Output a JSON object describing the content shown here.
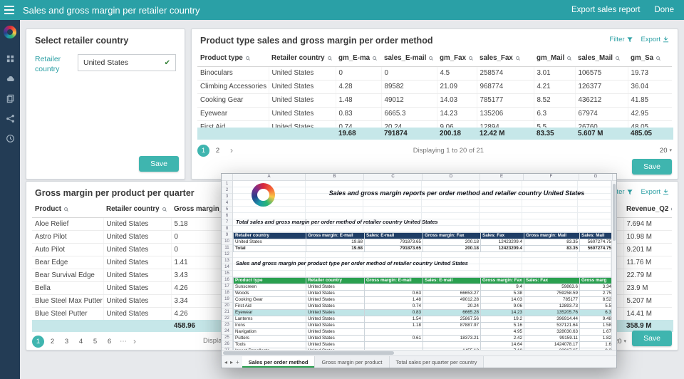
{
  "topbar": {
    "title": "Sales and gross margin per retailer country",
    "export_button": "Export sales report",
    "done_button": "Done"
  },
  "select_panel": {
    "title": "Select retailer country",
    "field_label": "Retailer country",
    "field_value": "United States",
    "check_icon": "✔",
    "save_button": "Save"
  },
  "product_type_panel": {
    "title": "Product type sales and gross margin per order method",
    "filter_link": "Filter",
    "export_link": "Export",
    "columns": [
      "Product type",
      "Retailer country",
      "gm_E-ma",
      "sales_E-mail",
      "gm_Fax",
      "sales_Fax",
      "gm_Mail",
      "sales_Mail",
      "gm_Sa"
    ],
    "rows": [
      [
        "Binoculars",
        "United States",
        "0",
        "0",
        "4.5",
        "258574",
        "3.01",
        "106575",
        "19.73"
      ],
      [
        "Climbing Accessories",
        "United States",
        "4.28",
        "89582",
        "21.09",
        "968774",
        "4.21",
        "126377",
        "36.04"
      ],
      [
        "Cooking Gear",
        "United States",
        "1.48",
        "49012",
        "14.03",
        "785177",
        "8.52",
        "436212",
        "41.85"
      ],
      [
        "Eyewear",
        "United States",
        "0.83",
        "6665.3",
        "14.23",
        "135206",
        "6.3",
        "67974",
        "42.95"
      ],
      [
        "First Aid",
        "United States",
        "0.74",
        "20.24",
        "9.06",
        "12894",
        "5.5",
        "26760",
        "48.05"
      ]
    ],
    "summary": [
      "",
      "",
      "19.68",
      "791874",
      "200.18",
      "12.42 M",
      "83.35",
      "5.607 M",
      "485.05"
    ],
    "pagination": {
      "pages": [
        "1",
        "2"
      ],
      "next": "›",
      "status": "Displaying 1 to 20 of 21",
      "page_size": "20",
      "caret": "▾"
    },
    "save_button": "Save"
  },
  "gross_margin_panel": {
    "title": "Gross margin per product per quarter",
    "filter_link": "Filter",
    "export_link": "Export",
    "columns": [
      "Product",
      "Retailer country",
      "Gross margin_Q1 201",
      "Revenue_Q2"
    ],
    "rows": [
      [
        "Aloe Relief",
        "United States",
        "5.18",
        "7.694 M"
      ],
      [
        "Astro Pilot",
        "United States",
        "0",
        "10.98 M"
      ],
      [
        "Auto Pilot",
        "United States",
        "0",
        "9.201 M"
      ],
      [
        "Bear Edge",
        "United States",
        "1.41",
        "11.76 M"
      ],
      [
        "Bear Survival Edge",
        "United States",
        "3.43",
        "22.79 M"
      ],
      [
        "Bella",
        "United States",
        "4.26",
        "23.9 M"
      ],
      [
        "Blue Steel Max Putter",
        "United States",
        "3.34",
        "5.207 M"
      ],
      [
        "Blue Steel Putter",
        "United States",
        "4.26",
        "14.41 M"
      ]
    ],
    "summary": [
      "",
      "",
      "458.96",
      "358.9 M"
    ],
    "pagination": {
      "pages": [
        "1",
        "2",
        "3",
        "4",
        "5",
        "6"
      ],
      "ellipsis": "⋯",
      "next": "›",
      "status": "Displayi",
      "page_size": "20",
      "caret": "▾"
    },
    "save_button": "Save"
  },
  "sheet": {
    "column_letters": [
      "A",
      "B",
      "C",
      "D",
      "E",
      "F",
      "G"
    ],
    "row_numbers": [
      "1",
      "2",
      "3",
      "4",
      "5",
      "6",
      "7",
      "8",
      "9",
      "10",
      "11",
      "12",
      "13",
      "14",
      "15",
      "16",
      "17",
      "18",
      "19",
      "20",
      "21",
      "22",
      "23",
      "24",
      "25",
      "26",
      "27"
    ],
    "main_title": "Sales and gross margin reports per order method and retailer country United States",
    "section1_title": "Total sales and gross margin per order method of retailer country United States",
    "table1": {
      "headers": [
        "Retailer country",
        "Gross margin: E-mail",
        "Sales: E-mail",
        "Gross margin: Fax",
        "Sales: Fax",
        "Gross margin: Mail",
        "Sales: Mail"
      ],
      "rows": [
        [
          "United States",
          "19.68",
          "791873.65",
          "200.18",
          "12423209.4",
          "83.35",
          "5607274.75"
        ],
        [
          "Total",
          "19.68",
          "791873.65",
          "200.18",
          "12423209.4",
          "83.35",
          "5607274.75"
        ]
      ]
    },
    "section2_title": "Sales and gross margin per product type per order method of retailer country United States",
    "table2": {
      "headers": [
        "Product type",
        "Retailer country",
        "Gross margin: E-mail",
        "Sales: E-mail",
        "Gross margin: Fax",
        "Sales: Fax",
        "Gross marg"
      ],
      "rows": [
        [
          "Sunscreen",
          "United States",
          "",
          "",
          "9.4",
          "59863.6",
          "3.34"
        ],
        [
          "Woods",
          "United States",
          "0.63",
          "66653.27",
          "5.38",
          "759258.59",
          "2.75"
        ],
        [
          "Cooking Gear",
          "United States",
          "1.48",
          "49012.28",
          "14.03",
          "785177",
          "8.52"
        ],
        [
          "First Aid",
          "United States",
          "0.74",
          "20.24",
          "9.06",
          "12893.73",
          "5.5"
        ],
        [
          "Eyewear",
          "United States",
          "0.83",
          "6665.28",
          "14.23",
          "135205.76",
          "6.3"
        ],
        [
          "Lanterns",
          "United States",
          "1.54",
          "25867.56",
          "19.2",
          "396914.44",
          "9.48"
        ],
        [
          "Irons",
          "United States",
          "1.18",
          "87887.97",
          "5.16",
          "537121.64",
          "1.58"
        ],
        [
          "Navigation",
          "United States",
          "",
          "",
          "4.95",
          "328030.63",
          "1.67"
        ],
        [
          "Putters",
          "United States",
          "0.61",
          "18373.21",
          "2.42",
          "99159.11",
          "1.82"
        ],
        [
          "Tools",
          "United States",
          "",
          "",
          "14.64",
          "1424078.17",
          "1.6"
        ],
        [
          "Insect Repellents",
          "United States",
          "",
          "1455.12",
          "7.18",
          "33017.65",
          "8.3"
        ]
      ]
    },
    "tabs": [
      "Sales per order method",
      "Gross margin per product",
      "Total sales per quarter per country"
    ],
    "tab_prev": "◂",
    "tab_next": "▸",
    "tab_add": "+"
  },
  "colors": {
    "topbar_teal": "#2aa0a6",
    "button_teal": "#3fb5af",
    "sidebar_navy": "#233c55",
    "summary_bg": "#c6e7e9",
    "sheet_header_blue": "#1f3e66",
    "sheet_header_green": "#2aa04f"
  }
}
